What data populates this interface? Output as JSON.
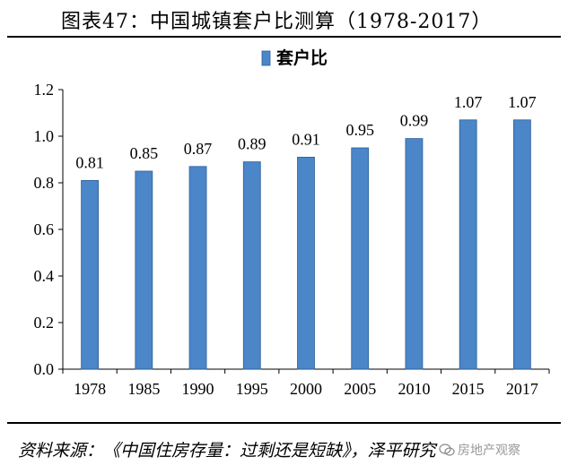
{
  "title": "图表47：中国城镇套户比测算（1978-2017）",
  "source": "资料来源：《中国住房存量：过剩还是短缺》，泽平研究",
  "watermark": "房地产观察",
  "colors": {
    "bar_fill": "#4a86c8",
    "bar_stroke": "#2f5f99",
    "axis": "#000000"
  },
  "chart_data": {
    "type": "bar",
    "title": "",
    "xlabel": "",
    "ylabel": "",
    "categories": [
      "1978",
      "1985",
      "1990",
      "1995",
      "2000",
      "2005",
      "2010",
      "2015",
      "2017"
    ],
    "series": [
      {
        "name": "套户比",
        "values": [
          0.81,
          0.85,
          0.87,
          0.89,
          0.91,
          0.95,
          0.99,
          1.07,
          1.07
        ],
        "labels": [
          "0.81",
          "0.85",
          "0.87",
          "0.89",
          "0.91",
          "0.95",
          "0.99",
          "1.07",
          "1.07"
        ]
      }
    ],
    "ylim": [
      0,
      1.2
    ],
    "yticks": [
      "0.0",
      "0.2",
      "0.4",
      "0.6",
      "0.8",
      "1.0",
      "1.2"
    ],
    "grid": false,
    "legend": "top-center"
  }
}
